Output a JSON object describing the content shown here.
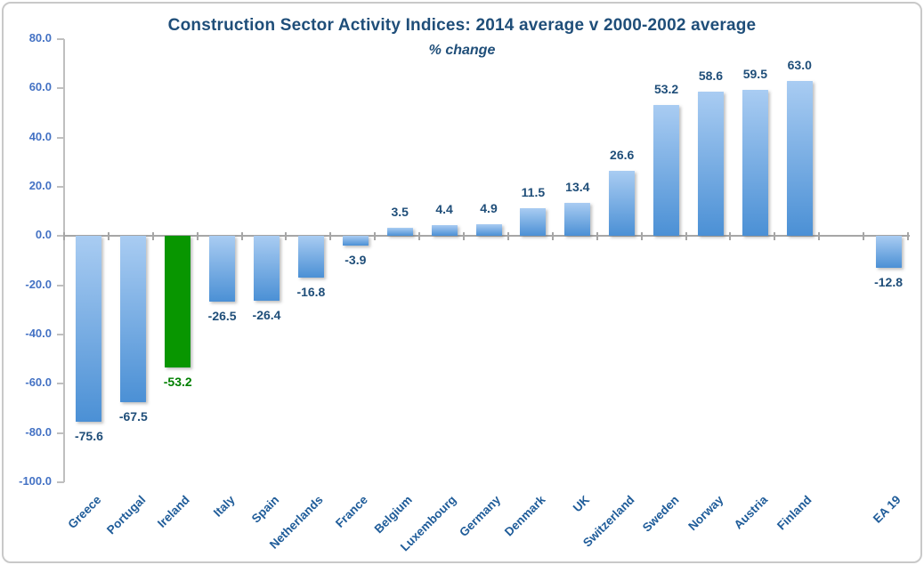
{
  "header": {
    "title": "Construction Sector Activity Indices:  2014 average v 2000-2002 average",
    "subtitle": "% change"
  },
  "chart_data": {
    "type": "bar",
    "title": "Construction Sector Activity Indices:  2014 average v 2000-2002 average",
    "subtitle": "% change",
    "categories": [
      "Greece",
      "Portugal",
      "Ireland",
      "Italy",
      "Spain",
      "Netherlands",
      "France",
      "Belgium",
      "Luxembourg",
      "Germany",
      "Denmark",
      "UK",
      "Switzerland",
      "Sweden",
      "Norway",
      "Austria",
      "Finland",
      "",
      "EA 19"
    ],
    "values": [
      -75.6,
      -67.5,
      -53.2,
      -26.5,
      -26.4,
      -16.8,
      -3.9,
      3.5,
      4.4,
      4.9,
      11.5,
      13.4,
      26.6,
      53.2,
      58.6,
      59.5,
      63.0,
      null,
      -12.8
    ],
    "value_labels": [
      "-75.6",
      "-67.5",
      "-53.2",
      "-26.5",
      "-26.4",
      "-16.8",
      "-3.9",
      "3.5",
      "4.4",
      "4.9",
      "11.5",
      "13.4",
      "26.6",
      "53.2",
      "58.6",
      "59.5",
      "63.0",
      "",
      "-12.8"
    ],
    "highlight_index": 2,
    "ylim": [
      -100,
      80
    ],
    "ytick_step": 20,
    "ytick_labels": [
      "80.0",
      "60.0",
      "40.0",
      "20.0",
      "0.0",
      "-20.0",
      "-40.0",
      "-60.0",
      "-80.0",
      "-100.0"
    ],
    "grid": false,
    "legend": false,
    "xlabel": "",
    "ylabel": ""
  },
  "colors": {
    "title": "#1F4E79",
    "subtitle": "#1F4E79",
    "axis_tick_labels": "#4472C4",
    "category_labels": "#1F5C99",
    "value_labels": "#1F4E79",
    "bar_gradient_top": "#A9CCF2",
    "bar_gradient_bottom": "#4B90D5",
    "highlight_bar": "#089600",
    "highlight_value_label": "#008000",
    "y_axis_line": "#BFBFBF",
    "zero_line": "#A6A6A6",
    "frame_border": "#C9C9C9",
    "background": "#FFFFFF"
  }
}
